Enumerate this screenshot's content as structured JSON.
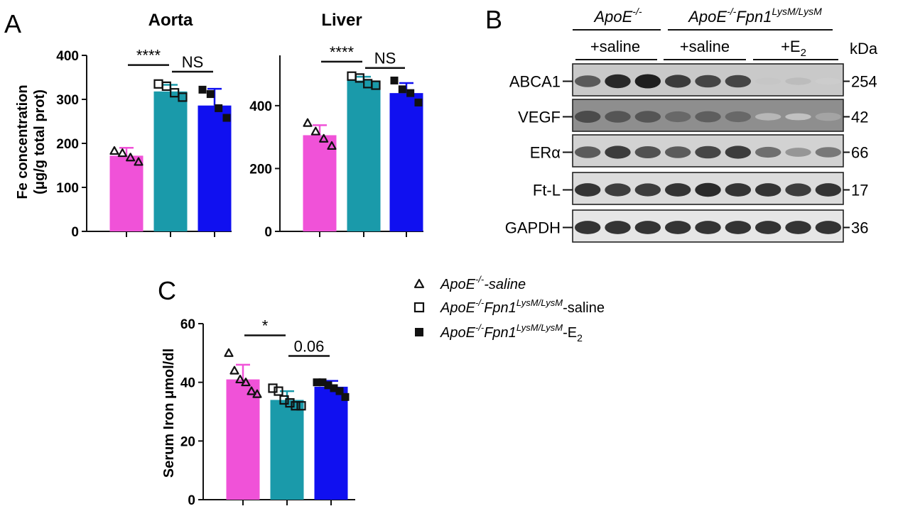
{
  "figure": {
    "panel_labels": {
      "a": "A",
      "b": "B",
      "c": "C"
    }
  },
  "colors": {
    "saline": "#f052d8",
    "fpn1_saline": "#1a9aaa",
    "fpn1_e2": "#1010f0",
    "axis": "#111111"
  },
  "chart_data": [
    {
      "id": "aorta",
      "type": "bar",
      "title": "Aorta",
      "ylabel_line1": "Fe concentration",
      "ylabel_line2": "(μg/g total prot)",
      "xlabel": "",
      "categories": [
        "ApoE-/--saline",
        "ApoE-/-Fpn1LysM/LysM-saline",
        "ApoE-/-Fpn1LysM/LysM-E2"
      ],
      "values": [
        172,
        318,
        286
      ],
      "errors": [
        18,
        15,
        38
      ],
      "points": [
        [
          183,
          178,
          168,
          158
        ],
        [
          335,
          330,
          315,
          305
        ],
        [
          322,
          312,
          280,
          258
        ]
      ],
      "ylim": [
        0,
        400
      ],
      "yticks": [
        0,
        100,
        200,
        300,
        400
      ],
      "significance": [
        {
          "from": 0,
          "to": 1,
          "label": "****",
          "y": 378
        },
        {
          "from": 1,
          "to": 2,
          "label": "NS",
          "y": 363
        }
      ]
    },
    {
      "id": "liver",
      "type": "bar",
      "title": "Liver",
      "xlabel": "",
      "categories": [
        "ApoE-/--saline",
        "ApoE-/-Fpn1LysM/LysM-saline",
        "ApoE-/-Fpn1LysM/LysM-E2"
      ],
      "values": [
        306,
        480,
        440
      ],
      "errors": [
        32,
        12,
        32
      ],
      "points": [
        [
          345,
          318,
          295,
          272
        ],
        [
          494,
          488,
          470,
          465
        ],
        [
          480,
          452,
          440,
          410
        ]
      ],
      "ylim": [
        0,
        560
      ],
      "yticks": [
        0,
        200,
        400
      ],
      "significance": [
        {
          "from": 0,
          "to": 1,
          "label": "****",
          "y": 540
        },
        {
          "from": 1,
          "to": 2,
          "label": "NS",
          "y": 520
        }
      ]
    },
    {
      "id": "serum",
      "type": "bar",
      "title": "",
      "ylabel": "Serum Iron μmol/dl",
      "xlabel": "",
      "categories": [
        "ApoE-/--saline",
        "ApoE-/-Fpn1LysM/LysM-saline",
        "ApoE-/-Fpn1LysM/LysM-E2"
      ],
      "values": [
        41,
        34,
        38.5
      ],
      "errors": [
        5,
        3,
        2
      ],
      "points": [
        [
          50,
          44,
          41,
          40,
          37,
          36
        ],
        [
          38,
          37,
          34,
          33,
          32,
          32
        ],
        [
          40,
          40,
          39,
          38,
          37,
          35
        ]
      ],
      "ylim": [
        0,
        60
      ],
      "yticks": [
        0,
        20,
        40,
        60
      ],
      "significance": [
        {
          "from": 0,
          "to": 1,
          "label": "*",
          "y": 56
        },
        {
          "from": 1,
          "to": 2,
          "label": "0.06",
          "y": 49
        }
      ]
    }
  ],
  "blot": {
    "groups": [
      {
        "base": "ApoE",
        "sup": "-/-",
        "mid": "",
        "sup2": ""
      },
      {
        "base": "ApoE",
        "sup": "-/-",
        "mid": "Fpn1",
        "sup2": "LysM/LysM"
      }
    ],
    "treatments": [
      "+saline",
      "+saline",
      "+E",
      "2"
    ],
    "kda_label": "kDa",
    "rows": [
      {
        "protein": "ABCA1",
        "kda": "254",
        "intensity": [
          0.7,
          0.95,
          1.0,
          0.85,
          0.8,
          0.8,
          0.15,
          0.2,
          0.12
        ]
      },
      {
        "protein": "VEGF",
        "kda": "42",
        "intensity": [
          0.75,
          0.7,
          0.7,
          0.6,
          0.65,
          0.6,
          0.2,
          0.15,
          0.3
        ]
      },
      {
        "protein": "ERα",
        "kda": "66",
        "intensity": [
          0.7,
          0.85,
          0.75,
          0.7,
          0.8,
          0.85,
          0.6,
          0.4,
          0.55
        ]
      },
      {
        "protein": "Ft-L",
        "kda": "17",
        "intensity": [
          0.9,
          0.85,
          0.85,
          0.9,
          0.95,
          0.9,
          0.9,
          0.85,
          0.9
        ]
      },
      {
        "protein": "GAPDH",
        "kda": "36",
        "intensity": [
          0.9,
          0.9,
          0.9,
          0.9,
          0.9,
          0.9,
          0.9,
          0.9,
          0.9
        ]
      }
    ]
  },
  "legend": [
    {
      "marker": "triangle",
      "base": "ApoE",
      "sup": "-/-",
      "mid": "",
      "sup2": "",
      "tail": "-saline",
      "tail_italic": true,
      "sub": ""
    },
    {
      "marker": "open-square",
      "base": "ApoE",
      "sup": "-/-",
      "mid": "Fpn1",
      "sup2": "LysM/LysM",
      "tail": "-saline",
      "tail_italic": false,
      "sub": ""
    },
    {
      "marker": "filled-square",
      "base": "ApoE",
      "sup": "-/-",
      "mid": "Fpn1",
      "sup2": "LysM/LysM",
      "tail": "-E",
      "tail_italic": false,
      "sub": "2"
    }
  ]
}
